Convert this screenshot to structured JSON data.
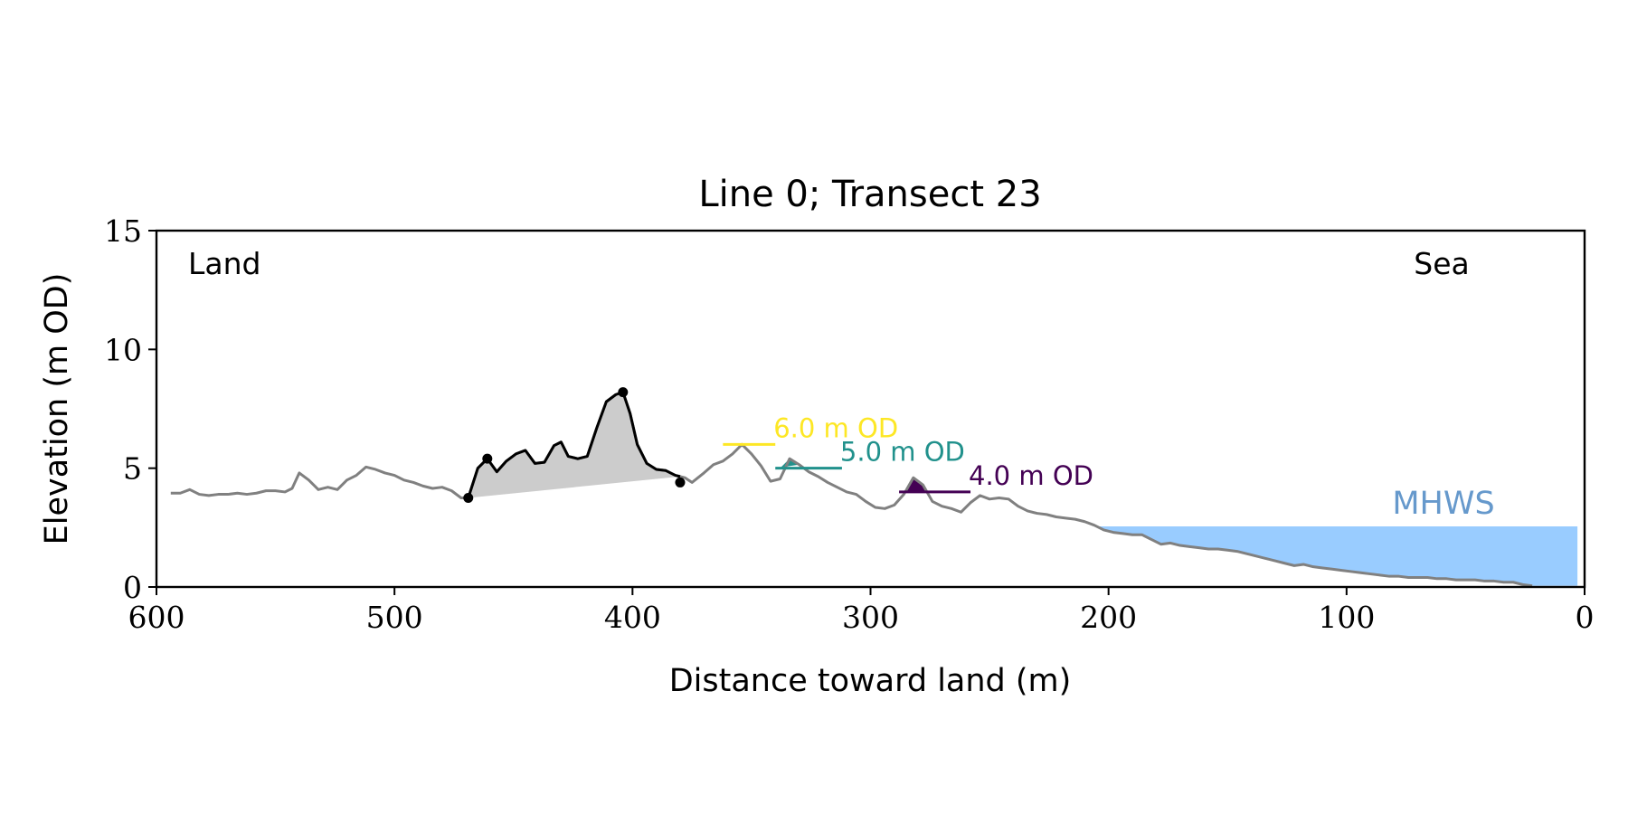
{
  "chart_data": {
    "type": "line",
    "title": "Line 0; Transect 23",
    "xlabel": "Distance toward land (m)",
    "ylabel": "Elevation (m OD)",
    "xlim": [
      600,
      0
    ],
    "ylim": [
      0,
      15
    ],
    "x_inverted": true,
    "xticks": [
      600,
      500,
      400,
      300,
      200,
      100,
      0
    ],
    "yticks": [
      0,
      5,
      10,
      15
    ],
    "grid": false,
    "corner_labels": {
      "left": "Land",
      "right": "Sea"
    },
    "profile": {
      "color": "#808080",
      "x": [
        594,
        590,
        586,
        582,
        578,
        574,
        570,
        566,
        562,
        558,
        554,
        550,
        546,
        543,
        540,
        536,
        532,
        528,
        524,
        520,
        516,
        512,
        508,
        504,
        500,
        496,
        492,
        488,
        484,
        480,
        476,
        472,
        469,
        465,
        461,
        457,
        453,
        449,
        445,
        441,
        437,
        433,
        430,
        427,
        423,
        419,
        415,
        411,
        407,
        404,
        401,
        398,
        394,
        390,
        386,
        382,
        378,
        375,
        370,
        366,
        362,
        358,
        354,
        350,
        346,
        342,
        338,
        334,
        330,
        326,
        322,
        318,
        314,
        310,
        306,
        302,
        298,
        294,
        290,
        286,
        282,
        278,
        274,
        270,
        266,
        262,
        258,
        254,
        250,
        246,
        242,
        238,
        234,
        230,
        226,
        222,
        218,
        214,
        210,
        206,
        202,
        198,
        194,
        190,
        186,
        182,
        178,
        174,
        170,
        166,
        162,
        158,
        154,
        150,
        146,
        142,
        138,
        134,
        130,
        126,
        122,
        118,
        114,
        110,
        106,
        102,
        98,
        94,
        90,
        86,
        82,
        78,
        74,
        70,
        66,
        62,
        58,
        54,
        50,
        46,
        42,
        38,
        34,
        30,
        26,
        22
      ],
      "y": [
        3.95,
        3.95,
        4.1,
        3.9,
        3.85,
        3.9,
        3.9,
        3.95,
        3.9,
        3.95,
        4.05,
        4.05,
        4.0,
        4.15,
        4.8,
        4.5,
        4.1,
        4.2,
        4.1,
        4.5,
        4.7,
        5.05,
        4.95,
        4.8,
        4.7,
        4.5,
        4.4,
        4.25,
        4.15,
        4.2,
        4.05,
        3.75,
        3.75,
        5.0,
        5.4,
        4.85,
        5.3,
        5.6,
        5.75,
        5.2,
        5.25,
        5.95,
        6.1,
        5.5,
        5.4,
        5.5,
        6.7,
        7.8,
        8.1,
        8.2,
        7.3,
        6.0,
        5.2,
        4.95,
        4.9,
        4.7,
        4.6,
        4.4,
        4.8,
        5.15,
        5.3,
        5.6,
        6.0,
        5.6,
        5.1,
        4.45,
        4.55,
        5.4,
        5.15,
        4.85,
        4.65,
        4.4,
        4.2,
        4.0,
        3.9,
        3.6,
        3.35,
        3.3,
        3.45,
        3.9,
        4.6,
        4.3,
        3.6,
        3.4,
        3.3,
        3.15,
        3.55,
        3.85,
        3.7,
        3.75,
        3.7,
        3.4,
        3.2,
        3.1,
        3.05,
        2.95,
        2.9,
        2.85,
        2.75,
        2.6,
        2.4,
        2.3,
        2.25,
        2.2,
        2.2,
        2.0,
        1.8,
        1.85,
        1.75,
        1.7,
        1.65,
        1.6,
        1.6,
        1.55,
        1.5,
        1.4,
        1.3,
        1.2,
        1.1,
        1.0,
        0.9,
        0.95,
        0.85,
        0.8,
        0.75,
        0.7,
        0.65,
        0.6,
        0.55,
        0.5,
        0.45,
        0.45,
        0.4,
        0.4,
        0.4,
        0.35,
        0.35,
        0.3,
        0.3,
        0.3,
        0.25,
        0.25,
        0.2,
        0.2,
        0.1,
        0.05
      ]
    },
    "dune_crest": {
      "color": "#000000",
      "fill_color": "#cccccc",
      "x_start": 469,
      "x_end": 380,
      "toe_points": [
        [
          469,
          3.75
        ],
        [
          380,
          4.4
        ]
      ],
      "peak_points": [
        [
          461,
          5.4
        ],
        [
          404,
          8.2
        ]
      ]
    },
    "thresholds": [
      {
        "label": "6.0 m OD",
        "value": 6.0,
        "color": "#fde725",
        "x_from": 362,
        "x_to": 340
      },
      {
        "label": "5.0 m OD",
        "value": 5.0,
        "color": "#21918c",
        "x_from": 340,
        "x_to": 312,
        "fill_x": [
          340,
          330
        ]
      },
      {
        "label": "4.0 m OD",
        "value": 4.0,
        "color": "#440154",
        "x_from": 288,
        "x_to": 258,
        "fill_x": [
          288,
          276
        ]
      }
    ],
    "mhws": {
      "label": "MHWS",
      "value": 2.55,
      "x_from": 206,
      "x_to": 3,
      "fill_color": "#99ccff",
      "label_color": "#6699cc"
    }
  }
}
